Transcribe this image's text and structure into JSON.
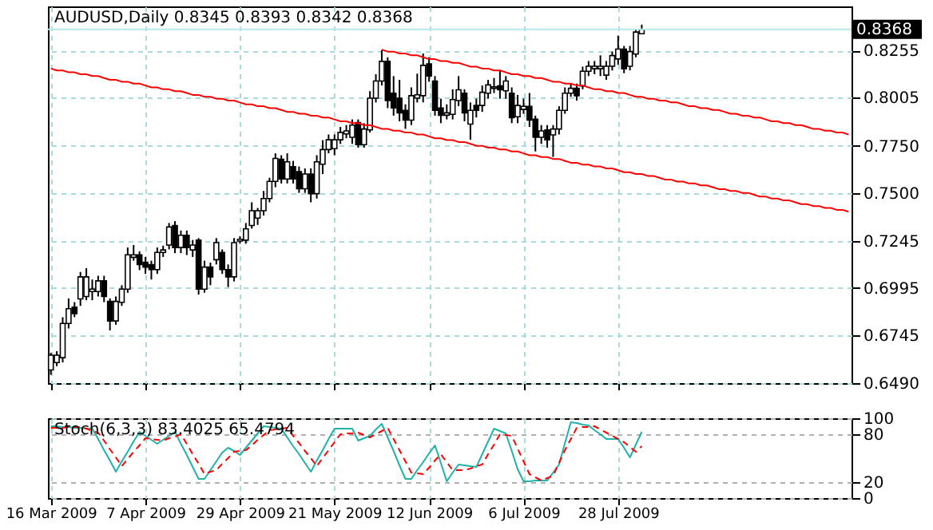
{
  "chart_data": [
    {
      "type": "candlestick",
      "title": "AUDUSD,Daily 0.8345 0.8393 0.8342 0.8368",
      "categories": [
        null,
        null,
        null,
        null,
        null,
        null,
        null,
        null,
        null,
        null,
        null,
        null,
        null,
        null,
        null,
        null,
        null,
        null,
        null,
        null,
        null,
        null,
        null,
        null,
        null,
        null,
        null,
        null,
        null,
        null,
        null,
        null,
        null,
        null,
        null,
        null,
        null,
        null,
        null,
        null,
        null,
        null,
        null,
        null,
        null,
        null,
        null,
        null,
        null,
        null,
        null,
        null,
        null,
        null,
        null,
        null,
        null,
        null,
        null,
        null,
        null,
        null,
        null,
        null,
        null,
        null,
        null,
        null,
        null,
        null,
        null,
        null,
        null,
        null,
        null,
        null,
        null,
        null,
        null,
        null,
        null,
        null,
        null,
        null,
        null,
        null,
        null,
        null,
        null,
        null,
        null,
        null,
        null,
        null,
        null,
        null,
        null,
        null,
        null,
        null,
        null,
        null,
        null,
        null,
        null,
        null,
        null,
        null,
        null,
        null,
        null,
        null,
        null,
        null,
        null,
        null,
        null,
        null,
        null,
        null,
        null,
        null,
        null,
        null,
        null,
        null,
        null,
        null,
        null,
        null,
        null,
        null,
        null,
        null,
        null,
        null
      ],
      "ohlc": [
        [
          0.656,
          0.6651,
          0.6534,
          0.6638
        ],
        [
          0.6599,
          0.666,
          0.658,
          0.6638
        ],
        [
          0.6625,
          0.684,
          0.66,
          0.6807
        ],
        [
          0.6807,
          0.694,
          0.678,
          0.6885
        ],
        [
          0.6893,
          0.692,
          0.684,
          0.6859
        ],
        [
          0.6937,
          0.708,
          0.69,
          0.7054
        ],
        [
          0.695,
          0.71,
          0.693,
          0.7054
        ],
        [
          0.6976,
          0.704,
          0.693,
          0.6989
        ],
        [
          0.6976,
          0.706,
          0.695,
          0.7033
        ],
        [
          0.7033,
          0.706,
          0.692,
          0.695
        ],
        [
          0.6924,
          0.694,
          0.677,
          0.682
        ],
        [
          0.682,
          0.695,
          0.68,
          0.6924
        ],
        [
          0.6919,
          0.701,
          0.69,
          0.6989
        ],
        [
          0.6989,
          0.721,
          0.697,
          0.7171
        ],
        [
          0.7158,
          0.7223,
          0.714,
          0.7171
        ],
        [
          0.7171,
          0.719,
          0.709,
          0.7119
        ],
        [
          0.7132,
          0.716,
          0.707,
          0.7106
        ],
        [
          0.7119,
          0.714,
          0.704,
          0.7093
        ],
        [
          0.7093,
          0.721,
          0.707,
          0.7184
        ],
        [
          0.7184,
          0.722,
          0.716,
          0.7197
        ],
        [
          0.7223,
          0.734,
          0.72,
          0.7319
        ],
        [
          0.7327,
          0.735,
          0.718,
          0.721
        ],
        [
          0.721,
          0.73,
          0.718,
          0.7275
        ],
        [
          0.7275,
          0.73,
          0.717,
          0.721
        ],
        [
          0.7197,
          0.725,
          0.716,
          0.7223
        ],
        [
          0.7249,
          0.726,
          0.696,
          0.6989
        ],
        [
          0.6989,
          0.714,
          0.697,
          0.7106
        ],
        [
          0.7106,
          0.713,
          0.701,
          0.7054
        ],
        [
          0.7145,
          0.726,
          0.712,
          0.7236
        ],
        [
          0.7184,
          0.72,
          0.707,
          0.7093
        ],
        [
          0.7093,
          0.712,
          0.7,
          0.7054
        ],
        [
          0.7054,
          0.726,
          0.703,
          0.7236
        ],
        [
          0.7244,
          0.727,
          0.723,
          0.7254
        ],
        [
          0.7249,
          0.734,
          0.723,
          0.7309
        ],
        [
          0.7327,
          0.745,
          0.731,
          0.7405
        ],
        [
          0.7366,
          0.742,
          0.733,
          0.7405
        ],
        [
          0.7405,
          0.751,
          0.738,
          0.747
        ],
        [
          0.747,
          0.758,
          0.745,
          0.7561
        ],
        [
          0.7561,
          0.771,
          0.753,
          0.7683
        ],
        [
          0.7678,
          0.77,
          0.755,
          0.7574
        ],
        [
          0.7574,
          0.771,
          0.755,
          0.7665
        ],
        [
          0.7639,
          0.767,
          0.755,
          0.7574
        ],
        [
          0.7613,
          0.764,
          0.75,
          0.7522
        ],
        [
          0.7522,
          0.763,
          0.75,
          0.76
        ],
        [
          0.76,
          0.763,
          0.745,
          0.7496
        ],
        [
          0.7496,
          0.77,
          0.747,
          0.7665
        ],
        [
          0.7652,
          0.778,
          0.76,
          0.773
        ],
        [
          0.773,
          0.781,
          0.771,
          0.7782
        ],
        [
          0.7735,
          0.781,
          0.77,
          0.7782
        ],
        [
          0.7782,
          0.785,
          0.776,
          0.7821
        ],
        [
          0.7813,
          0.786,
          0.779,
          0.7829
        ],
        [
          0.7795,
          0.789,
          0.776,
          0.786
        ],
        [
          0.7873,
          0.789,
          0.774,
          0.7756
        ],
        [
          0.7756,
          0.787,
          0.774,
          0.7839
        ],
        [
          0.7834,
          0.804,
          0.782,
          0.8003
        ],
        [
          0.8003,
          0.813,
          0.798,
          0.8094
        ],
        [
          0.8094,
          0.8258,
          0.807,
          0.8198
        ],
        [
          0.8198,
          0.822,
          0.795,
          0.799
        ],
        [
          0.8029,
          0.812,
          0.791,
          0.7951
        ],
        [
          0.8003,
          0.81,
          0.788,
          0.7925
        ],
        [
          0.7938,
          0.797,
          0.784,
          0.7886
        ],
        [
          0.7886,
          0.806,
          0.786,
          0.8016
        ],
        [
          0.8003,
          0.8133,
          0.798,
          0.8021
        ],
        [
          0.8016,
          0.824,
          0.798,
          0.8177
        ],
        [
          0.8185,
          0.822,
          0.809,
          0.812
        ],
        [
          0.8094,
          0.812,
          0.791,
          0.7938
        ],
        [
          0.7951,
          0.8,
          0.787,
          0.7912
        ],
        [
          0.7912,
          0.797,
          0.789,
          0.7925
        ],
        [
          0.7917,
          0.805,
          0.789,
          0.7995
        ],
        [
          0.799,
          0.812,
          0.796,
          0.8047
        ],
        [
          0.8029,
          0.805,
          0.788,
          0.7925
        ],
        [
          0.7865,
          0.798,
          0.7782,
          0.7938
        ],
        [
          0.7964,
          0.8,
          0.79,
          0.7938
        ],
        [
          0.7964,
          0.807,
          0.793,
          0.8034
        ],
        [
          0.8029,
          0.81,
          0.8,
          0.8073
        ],
        [
          0.8055,
          0.811,
          0.803,
          0.8063
        ],
        [
          0.8068,
          0.815,
          0.8,
          0.8047
        ],
        [
          0.8042,
          0.812,
          0.8,
          0.8094
        ],
        [
          0.8029,
          0.806,
          0.787,
          0.7899
        ],
        [
          0.7904,
          0.802,
          0.787,
          0.7964
        ],
        [
          0.7943,
          0.8,
          0.792,
          0.7959
        ],
        [
          0.7959,
          0.803,
          0.785,
          0.7886
        ],
        [
          0.7891,
          0.791,
          0.772,
          0.7795
        ],
        [
          0.7795,
          0.786,
          0.776,
          0.7829
        ],
        [
          0.7834,
          0.786,
          0.774,
          0.7782
        ],
        [
          0.7808,
          0.786,
          0.7691,
          0.7839
        ],
        [
          0.7839,
          0.796,
          0.781,
          0.7938
        ],
        [
          0.7938,
          0.806,
          0.792,
          0.8029
        ],
        [
          0.8029,
          0.808,
          0.801,
          0.8055
        ],
        [
          0.8055,
          0.808,
          0.799,
          0.8016
        ],
        [
          0.8068,
          0.817,
          0.805,
          0.8146
        ],
        [
          0.8146,
          0.82,
          0.812,
          0.8172
        ],
        [
          0.8159,
          0.82,
          0.813,
          0.8172
        ],
        [
          0.8159,
          0.823,
          0.812,
          0.8172
        ],
        [
          0.8125,
          0.82,
          0.81,
          0.8172
        ],
        [
          0.8172,
          0.825,
          0.815,
          0.8229
        ],
        [
          0.8211,
          0.8335,
          0.818,
          0.8263
        ],
        [
          0.8263,
          0.828,
          0.8135,
          0.8159
        ],
        [
          0.8172,
          0.828,
          0.815,
          0.825
        ],
        [
          0.8237,
          0.837,
          0.822,
          0.8354
        ],
        [
          0.8345,
          0.8393,
          0.8342,
          0.8368
        ],
        null,
        null,
        null,
        null,
        null,
        null,
        null,
        null,
        null,
        null,
        null,
        null,
        null,
        null,
        null,
        null,
        null,
        null,
        null,
        null,
        null,
        null,
        null,
        null,
        null,
        null,
        null,
        null,
        null,
        null,
        null,
        null,
        null,
        null,
        null
      ],
      "series": [
        {
          "type": "line",
          "color": "#ff0000",
          "values": [
            null,
            null,
            null,
            null,
            null,
            null,
            null,
            null,
            null,
            null,
            null,
            null,
            null,
            null,
            null,
            null,
            null,
            null,
            null,
            null,
            null,
            null,
            null,
            null,
            null,
            null,
            null,
            null,
            null,
            null,
            null,
            null,
            null,
            null,
            null,
            null,
            null,
            null,
            null,
            null,
            null,
            null,
            null,
            null,
            null,
            null,
            null,
            null,
            null,
            null,
            null,
            null,
            null,
            null,
            null,
            null,
            0.826,
            0.825,
            0.825,
            0.824,
            0.824,
            0.823,
            0.823,
            0.822,
            0.821,
            0.821,
            0.82,
            0.82,
            0.819,
            0.819,
            0.818,
            0.817,
            0.817,
            0.816,
            0.816,
            0.815,
            0.815,
            0.814,
            0.813,
            0.813,
            0.812,
            0.812,
            0.811,
            0.811,
            0.81,
            0.809,
            0.809,
            0.808,
            0.808,
            0.807,
            0.807,
            0.806,
            0.805,
            0.805,
            0.804,
            0.804,
            0.803,
            0.803,
            0.802,
            0.801,
            0.801,
            0.8,
            0.8,
            0.799,
            0.799,
            0.798,
            0.798,
            0.797,
            0.796,
            0.796,
            0.795,
            0.795,
            0.794,
            0.794,
            0.793,
            0.792,
            0.792,
            0.791,
            0.791,
            0.79,
            0.79,
            0.789,
            0.788,
            0.788,
            0.787,
            0.787,
            0.786,
            0.786,
            0.785,
            0.784,
            0.784,
            0.783,
            0.783,
            0.782,
            0.782,
            0.781
          ]
        },
        {
          "type": "line",
          "color": "#ff0000",
          "values": [
            0.816,
            0.815,
            0.815,
            0.814,
            0.814,
            0.813,
            0.813,
            0.812,
            0.812,
            0.811,
            0.81,
            0.81,
            0.809,
            0.809,
            0.808,
            0.808,
            0.807,
            0.806,
            0.806,
            0.805,
            0.805,
            0.804,
            0.804,
            0.803,
            0.802,
            0.802,
            0.801,
            0.801,
            0.8,
            0.8,
            0.799,
            0.799,
            0.798,
            0.797,
            0.797,
            0.796,
            0.796,
            0.795,
            0.795,
            0.794,
            0.793,
            0.793,
            0.792,
            0.792,
            0.791,
            0.791,
            0.79,
            0.79,
            0.789,
            0.788,
            0.788,
            0.787,
            0.787,
            0.786,
            0.786,
            0.785,
            0.784,
            0.784,
            0.783,
            0.783,
            0.782,
            0.782,
            0.781,
            0.781,
            0.78,
            0.779,
            0.779,
            0.778,
            0.778,
            0.777,
            0.777,
            0.776,
            0.775,
            0.775,
            0.774,
            0.774,
            0.773,
            0.773,
            0.772,
            0.772,
            0.771,
            0.77,
            0.77,
            0.769,
            0.769,
            0.768,
            0.768,
            0.767,
            0.766,
            0.766,
            0.765,
            0.765,
            0.764,
            0.764,
            0.763,
            0.763,
            0.762,
            0.761,
            0.761,
            0.76,
            0.76,
            0.759,
            0.759,
            0.758,
            0.757,
            0.757,
            0.756,
            0.756,
            0.755,
            0.755,
            0.754,
            0.754,
            0.753,
            0.752,
            0.752,
            0.751,
            0.751,
            0.75,
            0.75,
            0.749,
            0.748,
            0.748,
            0.747,
            0.747,
            0.746,
            0.746,
            0.745,
            0.744,
            0.744,
            0.743,
            0.743,
            0.742,
            0.742,
            0.741,
            0.741,
            0.74
          ]
        }
      ],
      "ylim": [
        0.649,
        0.849
      ],
      "yticks": [
        {
          "value": 0.649,
          "label": "0.6490"
        },
        0.6745,
        0.6995,
        0.7245,
        {
          "value": 0.75,
          "label": "0.7500"
        },
        {
          "value": 0.775,
          "label": "0.7750"
        },
        0.8005,
        0.8255
      ],
      "ref_lines": [
        {
          "axis": "y",
          "value": 0.8368,
          "label": "0.8368",
          "color": "#b8e8e8"
        }
      ],
      "grid": true,
      "tick_labels": "y"
    },
    {
      "type": "line",
      "annotations": [
        "Stoch(6,3,3) 83.4025 65.4794"
      ],
      "categories": [
        "16 Mar 2009",
        null,
        null,
        null,
        null,
        null,
        null,
        null,
        null,
        null,
        null,
        null,
        null,
        null,
        null,
        null,
        "7 Apr 2009",
        null,
        null,
        null,
        null,
        null,
        null,
        null,
        null,
        null,
        null,
        null,
        null,
        null,
        null,
        null,
        "29 Apr 2009",
        null,
        null,
        null,
        null,
        null,
        null,
        null,
        null,
        null,
        null,
        null,
        null,
        null,
        null,
        null,
        "21 May 2009",
        null,
        null,
        null,
        null,
        null,
        null,
        null,
        null,
        null,
        null,
        null,
        null,
        null,
        null,
        null,
        "12 Jun 2009",
        null,
        null,
        null,
        null,
        null,
        null,
        null,
        null,
        null,
        null,
        null,
        null,
        null,
        null,
        null,
        "6 Jul 2009",
        null,
        null,
        null,
        null,
        null,
        null,
        null,
        null,
        null,
        null,
        null,
        null,
        null,
        null,
        null,
        "28 Jul 2009",
        null,
        null,
        null,
        null,
        null,
        null,
        null,
        null,
        null,
        null,
        null,
        null,
        null,
        null,
        null,
        null,
        null,
        null,
        null,
        null,
        null,
        null,
        null,
        null,
        null,
        null,
        null,
        null,
        null,
        null,
        null,
        null,
        null,
        null,
        null,
        null,
        null,
        null,
        null
      ],
      "series": [
        {
          "color": "#20b2aa",
          "values": [
            90,
            90,
            89,
            89,
            88,
            88,
            87,
            87,
            74,
            60,
            47,
            33,
            46,
            58,
            71,
            83,
            78,
            73,
            68,
            73,
            78,
            83,
            68,
            54,
            39,
            24,
            24,
            35,
            46,
            57,
            63,
            59,
            54,
            63,
            72,
            81,
            90,
            89,
            88,
            87,
            76,
            65,
            55,
            44,
            33,
            47,
            60,
            74,
            87,
            87,
            87,
            87,
            72,
            75,
            78,
            86,
            93,
            76,
            59,
            41,
            24,
            24,
            35,
            45,
            56,
            66,
            44,
            21,
            32,
            42,
            41,
            40,
            39,
            55,
            71,
            87,
            84,
            81,
            59,
            36,
            21,
            21,
            22,
            22,
            22,
            32,
            42,
            69,
            95,
            94,
            92,
            91,
            85,
            80,
            74,
            74,
            74,
            63,
            51,
            67,
            83,
            null,
            null,
            null,
            null,
            null,
            null,
            null,
            null,
            null,
            null,
            null,
            null,
            null,
            null,
            null,
            null,
            null,
            null,
            null,
            null,
            null,
            null,
            null,
            null,
            null,
            null,
            null,
            null,
            null,
            null,
            null,
            null,
            null,
            null,
            null
          ]
        },
        {
          "color": "#ff0000",
          "line_style": "dashed",
          "values": [
            88,
            88,
            88,
            89,
            89,
            89,
            87,
            84,
            82,
            72,
            61,
            51,
            40,
            49,
            58,
            66,
            75,
            74,
            73,
            72,
            75,
            77,
            80,
            68,
            55,
            43,
            30,
            33,
            35,
            43,
            50,
            58,
            59,
            60,
            66,
            73,
            79,
            85,
            86,
            87,
            88,
            78,
            69,
            59,
            50,
            40,
            50,
            60,
            70,
            80,
            81,
            81,
            82,
            79,
            76,
            80,
            84,
            88,
            74,
            60,
            46,
            32,
            31,
            30,
            38,
            47,
            55,
            45,
            35,
            35,
            35,
            37,
            40,
            42,
            55,
            67,
            80,
            79,
            78,
            62,
            46,
            30,
            26,
            22,
            25,
            28,
            44,
            60,
            74,
            88,
            89,
            89,
            90,
            86,
            82,
            78,
            74,
            70,
            64,
            58,
            65,
            null,
            null,
            null,
            null,
            null,
            null,
            null,
            null,
            null,
            null,
            null,
            null,
            null,
            null,
            null,
            null,
            null,
            null,
            null,
            null,
            null,
            null,
            null,
            null,
            null,
            null,
            null,
            null,
            null,
            null,
            null,
            null,
            null,
            null,
            null
          ]
        }
      ],
      "ylim": [
        0,
        100
      ],
      "yticks": [
        0,
        20,
        80,
        100
      ],
      "grid": true
    }
  ]
}
